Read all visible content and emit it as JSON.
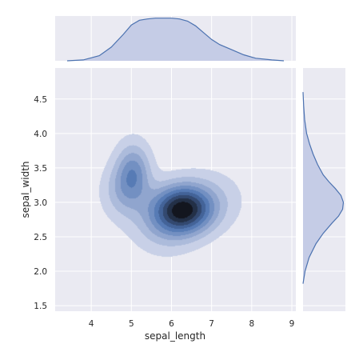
{
  "chart_data": {
    "type": "kde-joint",
    "xlabel": "sepal_length",
    "ylabel": "sepal_width",
    "xlim": [
      3.1,
      9.1
    ],
    "ylim": [
      1.42,
      4.95
    ],
    "x_ticks": [
      4,
      5,
      6,
      7,
      8,
      9
    ],
    "y_ticks": [
      1.5,
      2.0,
      2.5,
      3.0,
      3.5,
      4.0,
      4.5
    ],
    "x_tick_labels": [
      "4",
      "5",
      "6",
      "7",
      "8",
      "9"
    ],
    "y_tick_labels": [
      "1.5",
      "2.0",
      "2.5",
      "3.0",
      "3.5",
      "4.0",
      "4.5"
    ],
    "grid": true,
    "colors": {
      "background": "#eaeaf2",
      "grid": "#ffffff",
      "line": "#4c72b0",
      "fill": "#c5cce6",
      "kde_low": "#c8d0e7",
      "kde_high": "#13161f"
    },
    "joint_kde": {
      "levels": 9,
      "modes": [
        {
          "x": 5.05,
          "y": 3.42,
          "weight": 0.52,
          "sx": 0.3,
          "sy": 0.3
        },
        {
          "x": 6.3,
          "y": 2.9,
          "weight": 1.0,
          "sx": 0.5,
          "sy": 0.24
        },
        {
          "x": 5.8,
          "y": 2.7,
          "weight": 0.28,
          "sx": 0.55,
          "sy": 0.3
        },
        {
          "x": 4.7,
          "y": 3.15,
          "weight": 0.22,
          "sx": 0.35,
          "sy": 0.28
        },
        {
          "x": 7.0,
          "y": 3.05,
          "weight": 0.16,
          "sx": 0.6,
          "sy": 0.3
        }
      ]
    },
    "marginal_x": {
      "x": [
        3.4,
        3.8,
        4.2,
        4.5,
        4.8,
        5.0,
        5.2,
        5.4,
        5.6,
        5.8,
        6.0,
        6.2,
        6.4,
        6.6,
        6.8,
        7.0,
        7.2,
        7.5,
        7.8,
        8.1,
        8.5,
        8.8
      ],
      "density": [
        0.0,
        0.02,
        0.12,
        0.32,
        0.62,
        0.84,
        0.95,
        0.98,
        1.0,
        1.0,
        1.0,
        0.98,
        0.93,
        0.82,
        0.66,
        0.5,
        0.38,
        0.26,
        0.14,
        0.06,
        0.02,
        0.0
      ],
      "ylim": [
        0,
        1.05
      ]
    },
    "marginal_y": {
      "y": [
        1.82,
        2.0,
        2.2,
        2.4,
        2.55,
        2.7,
        2.8,
        2.9,
        3.0,
        3.1,
        3.2,
        3.3,
        3.4,
        3.55,
        3.7,
        3.85,
        4.0,
        4.2,
        4.4,
        4.6
      ],
      "density": [
        0.0,
        0.05,
        0.15,
        0.32,
        0.5,
        0.72,
        0.88,
        0.98,
        1.0,
        0.94,
        0.8,
        0.64,
        0.5,
        0.36,
        0.25,
        0.16,
        0.09,
        0.04,
        0.015,
        0.0
      ],
      "xlim": [
        0,
        1.05
      ]
    }
  }
}
